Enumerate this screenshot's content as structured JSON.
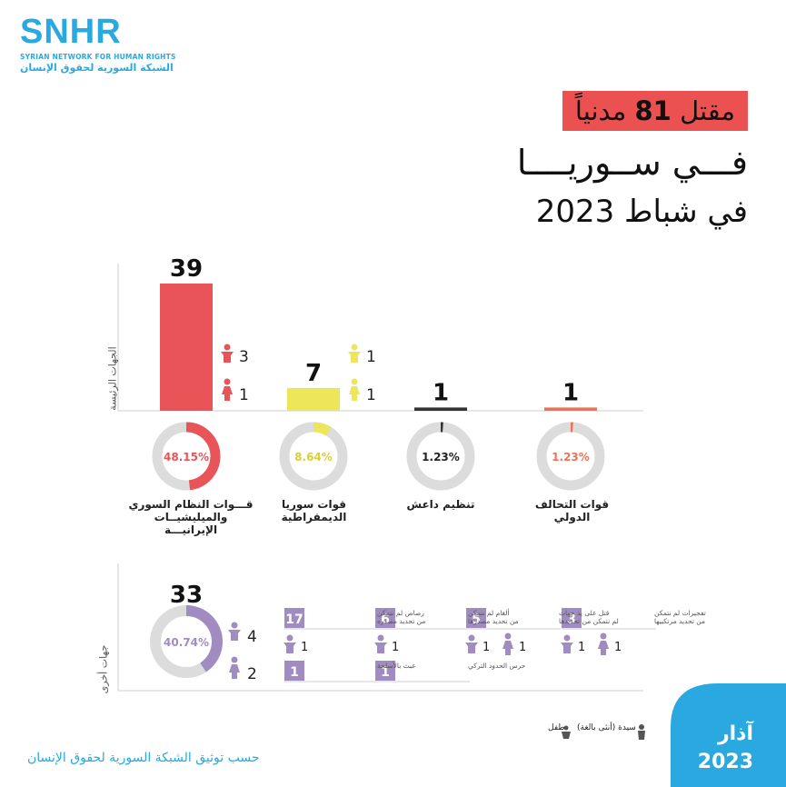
{
  "logo": {
    "main": "SNHR",
    "en": "SYRIAN NETWORK FOR HUMAN RIGHTS",
    "ar": "الشبكة السورية لحقوق الإنسان"
  },
  "title": {
    "line1_pre": "مقتل ",
    "line1_num": "81",
    "line1_post": " مدنياً",
    "line2": "فـــي ســوريــــا",
    "line3": "في شباط 2023"
  },
  "main_section_label": "الجهات الرئيسة",
  "other_section_label": "جهات أخرى",
  "colors": {
    "regime": "#e85458",
    "sdf": "#ede55a",
    "isis": "#333333",
    "coalition": "#ec7355",
    "others": "#a08cc0",
    "ring_bg": "#dcdcdc",
    "accent": "#29a9df"
  },
  "chart_data": {
    "type": "bar",
    "categories": [
      "قـــوات النظام السوري والميليشيــات الإيرانيـــة",
      "قوات سوريا الديمقراطية",
      "تنظيم داعش",
      "قوات التحالف الدولي"
    ],
    "values": [
      39,
      7,
      1,
      1
    ],
    "percents": [
      "48.15%",
      "8.64%",
      "1.23%",
      "1.23%"
    ],
    "children": [
      3,
      1,
      null,
      null
    ],
    "women": [
      1,
      1,
      null,
      null
    ],
    "ylim": [
      0,
      39
    ]
  },
  "others": {
    "total": 33,
    "percent": "40.74%",
    "children": 4,
    "women": 2,
    "percent_value": 40.74,
    "boxes": [
      {
        "value": "3",
        "text": "تفجيرات لم نتمكن من تحديد مرتكبيها",
        "child": "1",
        "woman": "1"
      },
      {
        "value": "5",
        "text": "قتل على يد جهات لم نتمكن من تحديدها",
        "child": "1",
        "woman": "1"
      },
      {
        "value": "6",
        "text": "ألغام لم نتمكن من تحديد مصدرها",
        "child": "1",
        "woman": ""
      },
      {
        "value": "17",
        "text": "رصاص لم نتمكن من تحديد مصدره",
        "child": "1",
        "woman": ""
      },
      {
        "value": "1",
        "text": "حرس الحدود التركي",
        "child": "",
        "woman": ""
      },
      {
        "value": "1",
        "text": "عبث بالأسلحة",
        "child": "",
        "woman": ""
      }
    ]
  },
  "legend": {
    "woman": "سيدة (أنثى بالغة)",
    "child": "طفل"
  },
  "footer": {
    "source": "حسب توثيق الشبكة السورية لحقوق الإنسان",
    "month": "آذار",
    "year": "2023"
  }
}
